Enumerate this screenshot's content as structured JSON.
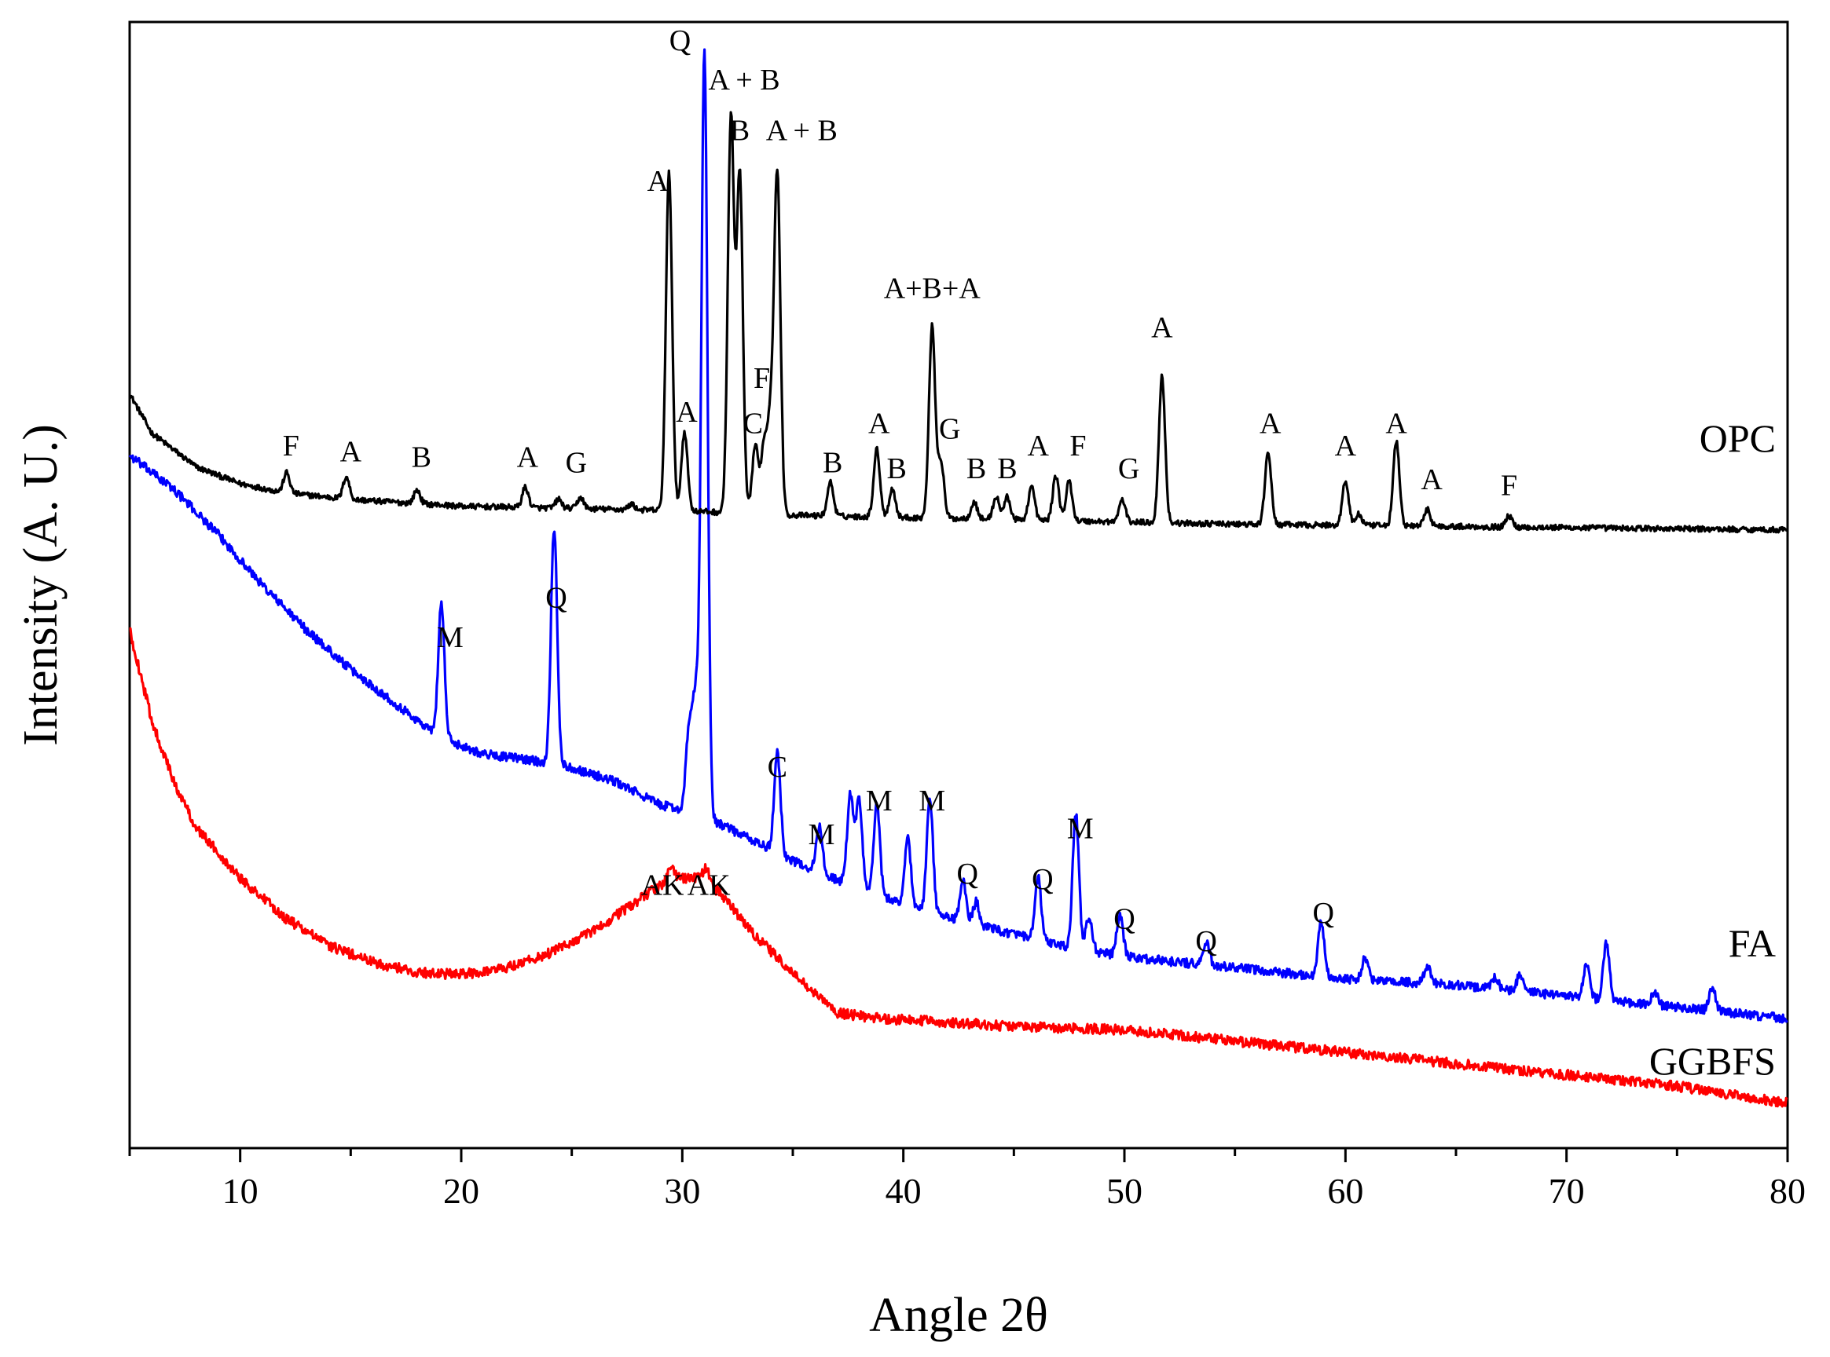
{
  "chart_data": {
    "type": "line",
    "title": "",
    "xlabel": "Angle 2θ",
    "ylabel": "Intensity (A. U.)",
    "xlim": [
      5,
      80
    ],
    "ylim": [
      0,
      100
    ],
    "xticks": [
      10,
      20,
      30,
      40,
      50,
      60,
      70,
      80
    ],
    "xtick_labels": [
      "10",
      "20",
      "30",
      "40",
      "50",
      "60",
      "70",
      "80"
    ],
    "grid": false,
    "legend": "inline labels at right",
    "series": [
      {
        "name": "OPC",
        "color": "#000000",
        "baseline": [
          [
            5,
            67
          ],
          [
            6,
            63.5
          ],
          [
            8,
            60.5
          ],
          [
            10,
            59
          ],
          [
            12,
            58.2
          ],
          [
            15,
            57.6
          ],
          [
            20,
            57
          ],
          [
            25,
            56.8
          ],
          [
            30,
            56.6
          ],
          [
            35,
            56.2
          ],
          [
            40,
            56
          ],
          [
            45,
            55.8
          ],
          [
            50,
            55.6
          ],
          [
            55,
            55.4
          ],
          [
            60,
            55.3
          ],
          [
            65,
            55.2
          ],
          [
            70,
            55.1
          ],
          [
            75,
            55
          ],
          [
            80,
            54.9
          ]
        ],
        "peaks": [
          [
            12.1,
            1.8
          ],
          [
            14.8,
            2
          ],
          [
            18,
            1.2
          ],
          [
            22.9,
            1.8
          ],
          [
            24.4,
            0.8
          ],
          [
            25.4,
            1
          ],
          [
            27.7,
            0.5
          ],
          [
            29.4,
            30
          ],
          [
            30.1,
            7
          ],
          [
            32.2,
            35
          ],
          [
            32.6,
            30
          ],
          [
            33.3,
            6
          ],
          [
            33.7,
            6
          ],
          [
            34,
            8
          ],
          [
            34.3,
            30
          ],
          [
            36.7,
            3
          ],
          [
            38.8,
            6
          ],
          [
            39.5,
            2.5
          ],
          [
            41.3,
            17
          ],
          [
            41.7,
            5
          ],
          [
            43.2,
            1.5
          ],
          [
            44.2,
            2
          ],
          [
            44.7,
            2
          ],
          [
            45.8,
            3
          ],
          [
            46.9,
            4
          ],
          [
            47.5,
            3.5
          ],
          [
            49.9,
            2
          ],
          [
            51.7,
            13
          ],
          [
            56.5,
            6.5
          ],
          [
            60,
            4
          ],
          [
            60.6,
            1
          ],
          [
            62.3,
            7.5
          ],
          [
            63.7,
            1.5
          ],
          [
            67.4,
            1
          ]
        ],
        "noise": 0.25
      },
      {
        "name": "FA",
        "color": "#0000ff",
        "baseline": [
          [
            5,
            61.5
          ],
          [
            7,
            58.5
          ],
          [
            9,
            54.5
          ],
          [
            11,
            50
          ],
          [
            13,
            46
          ],
          [
            15,
            42.5
          ],
          [
            17,
            39.5
          ],
          [
            19,
            36.5
          ],
          [
            21,
            35
          ],
          [
            23,
            34.5
          ],
          [
            25,
            33.8
          ],
          [
            27,
            32.5
          ],
          [
            29,
            30.5
          ],
          [
            30,
            30
          ],
          [
            31,
            29.5
          ],
          [
            33,
            27.5
          ],
          [
            35,
            25.5
          ],
          [
            38,
            23
          ],
          [
            41,
            21
          ],
          [
            44,
            19.5
          ],
          [
            47,
            18
          ],
          [
            50,
            17
          ],
          [
            55,
            16
          ],
          [
            60,
            15
          ],
          [
            65,
            14.5
          ],
          [
            70,
            13.5
          ],
          [
            75,
            12.5
          ],
          [
            80,
            11.5
          ]
        ],
        "peaks": [
          [
            19.1,
            12
          ],
          [
            24.2,
            21
          ],
          [
            30.3,
            7
          ],
          [
            30.6,
            10
          ],
          [
            31,
            68
          ],
          [
            34.3,
            9
          ],
          [
            36.2,
            4
          ],
          [
            37.6,
            8
          ],
          [
            38,
            8
          ],
          [
            38.8,
            8
          ],
          [
            40.2,
            6
          ],
          [
            41.2,
            10
          ],
          [
            42.7,
            3.5
          ],
          [
            43.3,
            2
          ],
          [
            46.1,
            5.5
          ],
          [
            47.8,
            12
          ],
          [
            48.4,
            3
          ],
          [
            49.8,
            3.5
          ],
          [
            53.7,
            2
          ],
          [
            58.9,
            5
          ],
          [
            60.9,
            2
          ],
          [
            63.7,
            1.5
          ],
          [
            66.8,
            1
          ],
          [
            67.9,
            1.5
          ],
          [
            70.9,
            3
          ],
          [
            71.8,
            5
          ],
          [
            74,
            1.2
          ],
          [
            76.6,
            2
          ]
        ],
        "noise": 0.4
      },
      {
        "name": "GGBFS",
        "color": "#ff0000",
        "baseline": [
          [
            5,
            46
          ],
          [
            6,
            38
          ],
          [
            7,
            32.5
          ],
          [
            8,
            28.5
          ],
          [
            10,
            24
          ],
          [
            12,
            20.5
          ],
          [
            14,
            18
          ],
          [
            16,
            16.5
          ],
          [
            18,
            15.6
          ],
          [
            20,
            15.4
          ],
          [
            22,
            16
          ],
          [
            24,
            17.3
          ],
          [
            26,
            19.3
          ],
          [
            28,
            22
          ],
          [
            29.5,
            24
          ],
          [
            31,
            24
          ],
          [
            32,
            22
          ],
          [
            33,
            19.5
          ],
          [
            35,
            15.5
          ],
          [
            37,
            12
          ],
          [
            39,
            11.5
          ],
          [
            42,
            11.2
          ],
          [
            45,
            10.8
          ],
          [
            50,
            10.5
          ],
          [
            55,
            9.5
          ],
          [
            60,
            8.5
          ],
          [
            65,
            7.5
          ],
          [
            70,
            6.5
          ],
          [
            75,
            5.5
          ],
          [
            80,
            4
          ]
        ],
        "peaks": [
          [
            29.5,
            1
          ],
          [
            31.1,
            1
          ]
        ],
        "noise": 0.45
      }
    ],
    "series_labels": [
      "OPC",
      "FA",
      "GGBFS"
    ],
    "annotations": [
      {
        "text": "F",
        "x": 12.3,
        "y": 61.5
      },
      {
        "text": "A",
        "x": 15,
        "y": 61
      },
      {
        "text": "B",
        "x": 18.2,
        "y": 60.5
      },
      {
        "text": "A",
        "x": 23,
        "y": 60.5
      },
      {
        "text": "G",
        "x": 25.2,
        "y": 60
      },
      {
        "text": "A",
        "x": 28.9,
        "y": 85
      },
      {
        "text": "A",
        "x": 30.2,
        "y": 64.5
      },
      {
        "text": "Q",
        "x": 29.9,
        "y": 97.5
      },
      {
        "text": "A + B",
        "x": 32.8,
        "y": 94
      },
      {
        "text": "B",
        "x": 32.6,
        "y": 89.5
      },
      {
        "text": "A + B",
        "x": 35.4,
        "y": 89.5
      },
      {
        "text": "F",
        "x": 33.6,
        "y": 67.5
      },
      {
        "text": "C",
        "x": 33.2,
        "y": 63.5
      },
      {
        "text": "A+B+A",
        "x": 41.3,
        "y": 75.5
      },
      {
        "text": "G",
        "x": 42.1,
        "y": 63
      },
      {
        "text": "B",
        "x": 36.8,
        "y": 60
      },
      {
        "text": "A",
        "x": 38.9,
        "y": 63.5
      },
      {
        "text": "B",
        "x": 39.7,
        "y": 59.5
      },
      {
        "text": "B",
        "x": 43.3,
        "y": 59.5
      },
      {
        "text": "B",
        "x": 44.7,
        "y": 59.5
      },
      {
        "text": "A",
        "x": 46.1,
        "y": 61.5
      },
      {
        "text": "F",
        "x": 47.9,
        "y": 61.5
      },
      {
        "text": "G",
        "x": 50.2,
        "y": 59.5
      },
      {
        "text": "A",
        "x": 51.7,
        "y": 72
      },
      {
        "text": "A",
        "x": 56.6,
        "y": 63.5
      },
      {
        "text": "A",
        "x": 60,
        "y": 61.5
      },
      {
        "text": "A",
        "x": 62.3,
        "y": 63.5
      },
      {
        "text": "A",
        "x": 63.9,
        "y": 58.5
      },
      {
        "text": "F",
        "x": 67.4,
        "y": 58
      },
      {
        "text": "M",
        "x": 19.5,
        "y": 44.5
      },
      {
        "text": "Q",
        "x": 24.3,
        "y": 48
      },
      {
        "text": "C",
        "x": 34.3,
        "y": 33
      },
      {
        "text": "M",
        "x": 36.3,
        "y": 27
      },
      {
        "text": "M",
        "x": 38.9,
        "y": 30
      },
      {
        "text": "M",
        "x": 41.3,
        "y": 30
      },
      {
        "text": "Q",
        "x": 42.9,
        "y": 23.5
      },
      {
        "text": "Q",
        "x": 46.3,
        "y": 23
      },
      {
        "text": "M",
        "x": 48,
        "y": 27.5
      },
      {
        "text": "Q",
        "x": 50,
        "y": 19.5
      },
      {
        "text": "Q",
        "x": 53.7,
        "y": 17.5
      },
      {
        "text": "Q",
        "x": 59,
        "y": 20
      },
      {
        "text": "AK",
        "x": 29.1,
        "y": 22.5
      },
      {
        "text": "AK",
        "x": 31.2,
        "y": 22.5
      }
    ]
  }
}
